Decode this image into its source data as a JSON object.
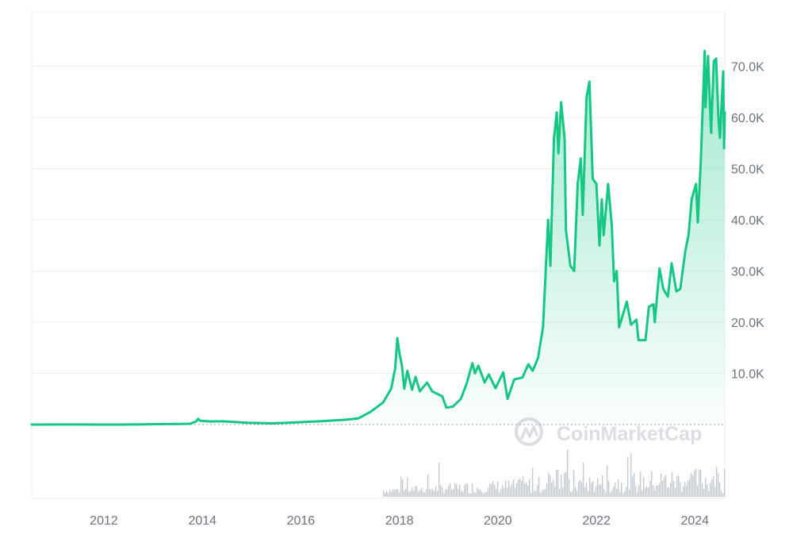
{
  "chart_data": {
    "type": "area",
    "title": "",
    "xlabel": "",
    "ylabel": "",
    "x_ticks": [
      "2012",
      "2014",
      "2016",
      "2018",
      "2020",
      "2022",
      "2024"
    ],
    "y_ticks": [
      "10.0K",
      "20.0K",
      "30.0K",
      "40.0K",
      "50.0K",
      "60.0K",
      "70.0K"
    ],
    "y_tick_values": [
      10000,
      20000,
      30000,
      40000,
      50000,
      60000,
      70000
    ],
    "ylim": [
      0,
      78000
    ],
    "xlim": [
      "2010-07-15",
      "2024-08-10"
    ],
    "grid": true,
    "series": [
      {
        "color": "#16c784",
        "points": [
          [
            "2010-07-15",
            0
          ],
          [
            "2011-06-01",
            15
          ],
          [
            "2012-06-01",
            7
          ],
          [
            "2013-04-01",
            100
          ],
          [
            "2013-06-01",
            100
          ],
          [
            "2013-10-01",
            150
          ],
          [
            "2013-11-15",
            600
          ],
          [
            "2013-12-01",
            1100
          ],
          [
            "2013-12-15",
            750
          ],
          [
            "2014-03-01",
            600
          ],
          [
            "2014-06-01",
            640
          ],
          [
            "2014-12-01",
            350
          ],
          [
            "2015-06-01",
            230
          ],
          [
            "2015-12-01",
            430
          ],
          [
            "2016-06-01",
            650
          ],
          [
            "2016-12-01",
            950
          ],
          [
            "2017-03-01",
            1200
          ],
          [
            "2017-06-01",
            2500
          ],
          [
            "2017-09-01",
            4300
          ],
          [
            "2017-11-01",
            7000
          ],
          [
            "2017-12-01",
            11000
          ],
          [
            "2017-12-17",
            16900
          ],
          [
            "2018-01-01",
            14000
          ],
          [
            "2018-01-20",
            11500
          ],
          [
            "2018-02-06",
            7000
          ],
          [
            "2018-03-01",
            10500
          ],
          [
            "2018-04-05",
            6800
          ],
          [
            "2018-05-01",
            9300
          ],
          [
            "2018-06-01",
            6500
          ],
          [
            "2018-07-25",
            8200
          ],
          [
            "2018-09-01",
            6500
          ],
          [
            "2018-11-15",
            5500
          ],
          [
            "2018-12-15",
            3300
          ],
          [
            "2019-02-01",
            3500
          ],
          [
            "2019-04-01",
            5000
          ],
          [
            "2019-05-15",
            8000
          ],
          [
            "2019-06-26",
            12000
          ],
          [
            "2019-07-15",
            10000
          ],
          [
            "2019-08-10",
            11500
          ],
          [
            "2019-09-25",
            8200
          ],
          [
            "2019-10-26",
            9800
          ],
          [
            "2019-12-15",
            7100
          ],
          [
            "2020-02-10",
            10200
          ],
          [
            "2020-03-13",
            5000
          ],
          [
            "2020-05-01",
            8800
          ],
          [
            "2020-07-01",
            9200
          ],
          [
            "2020-08-15",
            11800
          ],
          [
            "2020-09-15",
            10500
          ],
          [
            "2020-10-25",
            13000
          ],
          [
            "2020-12-01",
            19000
          ],
          [
            "2021-01-08",
            40000
          ],
          [
            "2021-01-25",
            31000
          ],
          [
            "2021-02-20",
            56000
          ],
          [
            "2021-03-13",
            61000
          ],
          [
            "2021-03-25",
            53000
          ],
          [
            "2021-04-14",
            63000
          ],
          [
            "2021-05-10",
            56000
          ],
          [
            "2021-05-20",
            38000
          ],
          [
            "2021-06-22",
            31000
          ],
          [
            "2021-07-20",
            30000
          ],
          [
            "2021-08-15",
            47000
          ],
          [
            "2021-09-07",
            52000
          ],
          [
            "2021-09-22",
            41000
          ],
          [
            "2021-10-20",
            64000
          ],
          [
            "2021-11-10",
            67000
          ],
          [
            "2021-12-05",
            48000
          ],
          [
            "2022-01-01",
            47000
          ],
          [
            "2022-01-24",
            35000
          ],
          [
            "2022-02-10",
            44000
          ],
          [
            "2022-02-24",
            37000
          ],
          [
            "2022-03-29",
            47000
          ],
          [
            "2022-04-25",
            39000
          ],
          [
            "2022-05-12",
            28000
          ],
          [
            "2022-06-01",
            30000
          ],
          [
            "2022-06-18",
            19000
          ],
          [
            "2022-08-14",
            24000
          ],
          [
            "2022-09-15",
            19500
          ],
          [
            "2022-10-25",
            20500
          ],
          [
            "2022-11-09",
            16500
          ],
          [
            "2022-12-31",
            16500
          ],
          [
            "2023-01-25",
            23000
          ],
          [
            "2023-02-28",
            23500
          ],
          [
            "2023-03-10",
            20000
          ],
          [
            "2023-04-14",
            30500
          ],
          [
            "2023-05-12",
            26500
          ],
          [
            "2023-06-15",
            25000
          ],
          [
            "2023-07-13",
            31500
          ],
          [
            "2023-08-17",
            26000
          ],
          [
            "2023-09-15",
            26500
          ],
          [
            "2023-10-23",
            34000
          ],
          [
            "2023-11-15",
            37000
          ],
          [
            "2023-12-08",
            44000
          ],
          [
            "2024-01-10",
            47000
          ],
          [
            "2024-01-23",
            39500
          ],
          [
            "2024-02-15",
            52000
          ],
          [
            "2024-03-05",
            66000
          ],
          [
            "2024-03-14",
            73000
          ],
          [
            "2024-03-20",
            62000
          ],
          [
            "2024-04-08",
            72000
          ],
          [
            "2024-05-01",
            57000
          ],
          [
            "2024-05-21",
            71000
          ],
          [
            "2024-06-07",
            71500
          ],
          [
            "2024-06-24",
            60000
          ],
          [
            "2024-07-05",
            56000
          ],
          [
            "2024-07-29",
            69000
          ],
          [
            "2024-08-05",
            54000
          ],
          [
            "2024-08-10",
            61000
          ]
        ]
      }
    ],
    "volume_color": "#c4c9d1",
    "watermark": "CoinMarketCap"
  }
}
